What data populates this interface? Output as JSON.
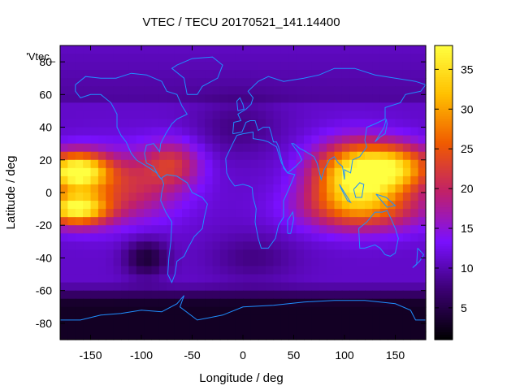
{
  "chart_data": {
    "type": "heatmap",
    "title": "VTEC / TECU 20170521_141.14400",
    "xlabel": "Longitude / deg",
    "ylabel": "Latitude / deg",
    "key_label": "'Vtec_",
    "xlim": [
      -180,
      180
    ],
    "ylim": [
      -90,
      90
    ],
    "x_ticks": [
      -150,
      -100,
      -50,
      0,
      50,
      100,
      150
    ],
    "y_ticks": [
      -80,
      -60,
      -40,
      -20,
      0,
      20,
      40,
      60,
      80
    ],
    "colorbar": {
      "range": [
        1,
        38
      ],
      "ticks": [
        5,
        10,
        15,
        20,
        25,
        30,
        35
      ]
    },
    "colors": {
      "coastline": "#1f8fff",
      "palette": [
        "#000000",
        "#3a0070",
        "#7a10ff",
        "#c0206a",
        "#f05a00",
        "#ffc000",
        "#ffff40"
      ]
    },
    "features": [
      {
        "name": "equatorial-anomaly-pacific",
        "lon": [
          -180,
          -95
        ],
        "lat": [
          -20,
          30
        ],
        "peak": 37
      },
      {
        "name": "equatorial-anomaly-asia",
        "lon": [
          75,
          180
        ],
        "lat": [
          -20,
          30
        ],
        "peak": 35
      },
      {
        "name": "minimum-south-pacific",
        "lon": [
          -110,
          -70
        ],
        "lat": [
          -50,
          -30
        ],
        "peak": 3
      },
      {
        "name": "polar-south",
        "lon": [
          -180,
          180
        ],
        "lat": [
          -90,
          -60
        ],
        "peak": 2
      }
    ]
  }
}
